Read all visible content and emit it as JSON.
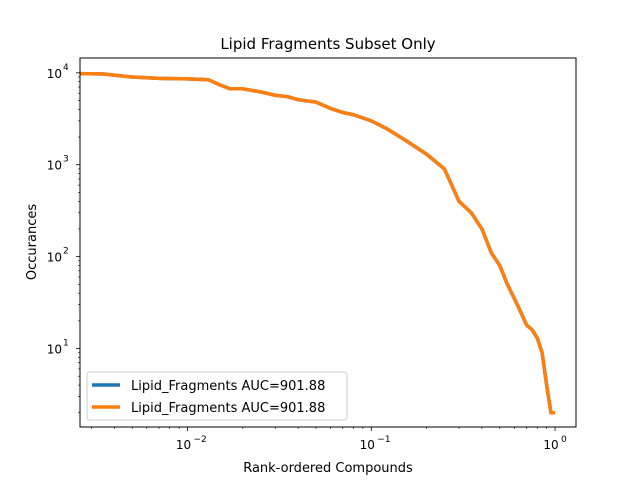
{
  "chart_data": {
    "type": "line",
    "title": "Lipid Fragments Subset Only",
    "xlabel": "Rank-ordered Compounds",
    "ylabel": "Occurances",
    "xscale": "log",
    "yscale": "log",
    "xlim": [
      0.0026,
      1.3
    ],
    "ylim": [
      1.4,
      14500
    ],
    "x_ticks": [
      {
        "value": 0.01,
        "base": "10",
        "exp": "−2"
      },
      {
        "value": 0.1,
        "base": "10",
        "exp": "−1"
      },
      {
        "value": 1,
        "base": "10",
        "exp": "0"
      }
    ],
    "y_ticks": [
      {
        "value": 10,
        "base": "10",
        "exp": "1"
      },
      {
        "value": 100,
        "base": "10",
        "exp": "2"
      },
      {
        "value": 1000,
        "base": "10",
        "exp": "3"
      },
      {
        "value": 10000,
        "base": "10",
        "exp": "4"
      }
    ],
    "legend_position": "lower-left",
    "series": [
      {
        "name": "Lipid_Fragments AUC=901.88",
        "color": "#1f77b4",
        "x": [
          0.0026,
          0.0035,
          0.005,
          0.007,
          0.01,
          0.013,
          0.015,
          0.017,
          0.02,
          0.025,
          0.03,
          0.035,
          0.04,
          0.05,
          0.06,
          0.07,
          0.08,
          0.1,
          0.12,
          0.15,
          0.2,
          0.25,
          0.3,
          0.35,
          0.4,
          0.45,
          0.5,
          0.55,
          0.6,
          0.65,
          0.7,
          0.75,
          0.8,
          0.85,
          0.9,
          0.92,
          0.95,
          1.0
        ],
        "y": [
          9800,
          9700,
          9000,
          8700,
          8600,
          8400,
          7400,
          6700,
          6700,
          6200,
          5700,
          5500,
          5100,
          4800,
          4100,
          3700,
          3500,
          3000,
          2500,
          1900,
          1300,
          900,
          400,
          300,
          200,
          110,
          80,
          50,
          35,
          25,
          18,
          16,
          13,
          9,
          4,
          3,
          2,
          2
        ]
      },
      {
        "name": "Lipid_Fragments AUC=901.88",
        "color": "#ff7f0e",
        "x": [
          0.0026,
          0.0035,
          0.005,
          0.007,
          0.01,
          0.013,
          0.015,
          0.017,
          0.02,
          0.025,
          0.03,
          0.035,
          0.04,
          0.05,
          0.06,
          0.07,
          0.08,
          0.1,
          0.12,
          0.15,
          0.2,
          0.25,
          0.3,
          0.35,
          0.4,
          0.45,
          0.5,
          0.55,
          0.6,
          0.65,
          0.7,
          0.75,
          0.8,
          0.85,
          0.9,
          0.92,
          0.95,
          1.0
        ],
        "y": [
          9800,
          9700,
          9000,
          8700,
          8600,
          8400,
          7400,
          6700,
          6700,
          6200,
          5700,
          5500,
          5100,
          4800,
          4100,
          3700,
          3500,
          3000,
          2500,
          1900,
          1300,
          900,
          400,
          300,
          200,
          110,
          80,
          50,
          35,
          25,
          18,
          16,
          13,
          9,
          4,
          3,
          2,
          2
        ]
      }
    ]
  }
}
